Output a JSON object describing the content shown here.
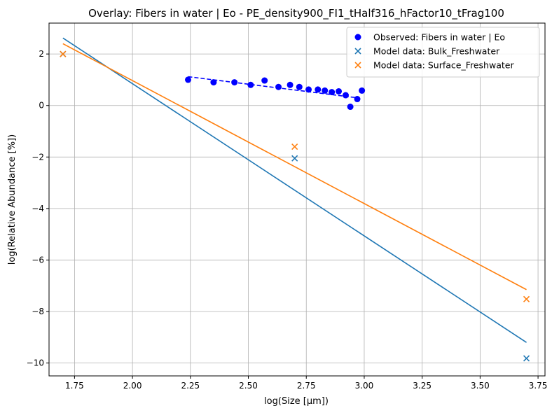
{
  "chart_data": {
    "type": "scatter",
    "title": "Overlay: Fibers in water | Eo - PE_density900_FI1_tHalf316_hFactor10_tFrag100",
    "xlabel": "log(Size [µm])",
    "ylabel": "log(Relative Abundance [%])",
    "xlim": [
      1.64,
      3.78
    ],
    "ylim": [
      -10.5,
      3.2
    ],
    "xticks": [
      1.75,
      2.0,
      2.25,
      2.5,
      2.75,
      3.0,
      3.25,
      3.5,
      3.75
    ],
    "xtick_labels": [
      "1.75",
      "2.00",
      "2.25",
      "2.50",
      "2.75",
      "3.00",
      "3.25",
      "3.50",
      "3.75"
    ],
    "yticks": [
      -10,
      -8,
      -6,
      -4,
      -2,
      0,
      2
    ],
    "ytick_labels": [
      "−10",
      "−8",
      "−6",
      "−4",
      "−2",
      "0",
      "2"
    ],
    "grid": true,
    "legend_position": "top-right",
    "series": [
      {
        "name": "Observed: Fibers in water | Eo",
        "marker": "circle",
        "color": "#0000ff",
        "x": [
          2.24,
          2.35,
          2.44,
          2.51,
          2.57,
          2.63,
          2.68,
          2.72,
          2.76,
          2.8,
          2.83,
          2.86,
          2.89,
          2.92,
          2.94,
          2.97,
          2.99
        ],
        "y": [
          1.0,
          0.9,
          0.9,
          0.8,
          0.97,
          0.72,
          0.8,
          0.72,
          0.62,
          0.62,
          0.58,
          0.52,
          0.55,
          0.4,
          -0.05,
          0.25,
          0.58
        ],
        "fit": {
          "x": [
            2.24,
            2.97
          ],
          "y": [
            1.12,
            0.3
          ],
          "style": "dashed"
        }
      },
      {
        "name": "Model data: Bulk_Freshwater",
        "marker": "x",
        "color": "#1f77b4",
        "x": [
          1.7,
          2.7,
          3.7
        ],
        "y": [
          2.0,
          -2.05,
          -9.82
        ],
        "fit": {
          "x": [
            1.7,
            3.7
          ],
          "y": [
            2.62,
            -9.2
          ],
          "style": "solid"
        }
      },
      {
        "name": "Model data: Surface_Freshwater",
        "marker": "x",
        "color": "#ff7f0e",
        "x": [
          1.7,
          2.7,
          3.7
        ],
        "y": [
          2.0,
          -1.6,
          -7.52
        ],
        "fit": {
          "x": [
            1.7,
            3.7
          ],
          "y": [
            2.4,
            -7.15
          ],
          "style": "solid"
        }
      }
    ]
  }
}
